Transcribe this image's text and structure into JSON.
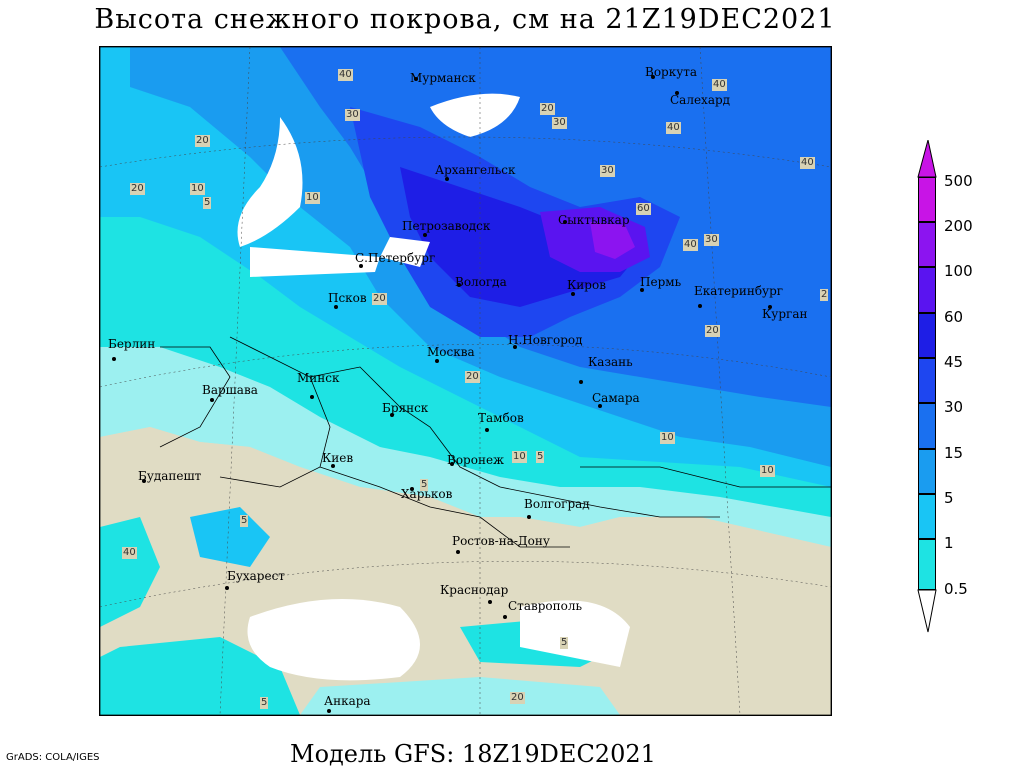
{
  "title": "Высота снежного покрова, см на 21Z19DEC2021",
  "footer": "Модель GFS: 18Z19DEC2021",
  "credit": "GrADS: COLA/IGES",
  "legend": {
    "levels": [
      "0.5",
      "1",
      "5",
      "15",
      "30",
      "45",
      "60",
      "100",
      "200",
      "500"
    ],
    "colors": [
      "#ffffff",
      "#9cf0f0",
      "#1ee3e3",
      "#19c5f5",
      "#1a9cf0",
      "#1a70f0",
      "#1e46f0",
      "#1e1ee6",
      "#5a14f0",
      "#8c14f0",
      "#c814e6"
    ]
  },
  "cities": [
    {
      "name": "Мурманск"
    },
    {
      "name": "Воркута"
    },
    {
      "name": "Салехард"
    },
    {
      "name": "Архангельск"
    },
    {
      "name": "Сыктывкар"
    },
    {
      "name": "Петрозаводск"
    },
    {
      "name": "С.Петербург"
    },
    {
      "name": "Вологда"
    },
    {
      "name": "Киров"
    },
    {
      "name": "Пермь"
    },
    {
      "name": "Екатеринбург"
    },
    {
      "name": "Курган"
    },
    {
      "name": "Псков"
    },
    {
      "name": "Н.Новгород"
    },
    {
      "name": "Москва"
    },
    {
      "name": "Казань"
    },
    {
      "name": "Берлин"
    },
    {
      "name": "Минск"
    },
    {
      "name": "Варшава"
    },
    {
      "name": "Брянск"
    },
    {
      "name": "Самара"
    },
    {
      "name": "Тамбов"
    },
    {
      "name": "Киев"
    },
    {
      "name": "Воронеж"
    },
    {
      "name": "Будапешт"
    },
    {
      "name": "Харьков"
    },
    {
      "name": "Волгоград"
    },
    {
      "name": "Ростов-на-Дону"
    },
    {
      "name": "Бухарест"
    },
    {
      "name": "Краснодар"
    },
    {
      "name": "Ставрополь"
    },
    {
      "name": "Анкара"
    }
  ],
  "contour_labels": [
    "40",
    "40",
    "40",
    "40",
    "30",
    "30",
    "30",
    "20",
    "20",
    "20",
    "20",
    "20",
    "10",
    "10",
    "10",
    "10",
    "5",
    "5",
    "5",
    "5",
    "60",
    "30",
    "40",
    "20",
    "10",
    "5",
    "2",
    "5",
    "20",
    "40"
  ]
}
